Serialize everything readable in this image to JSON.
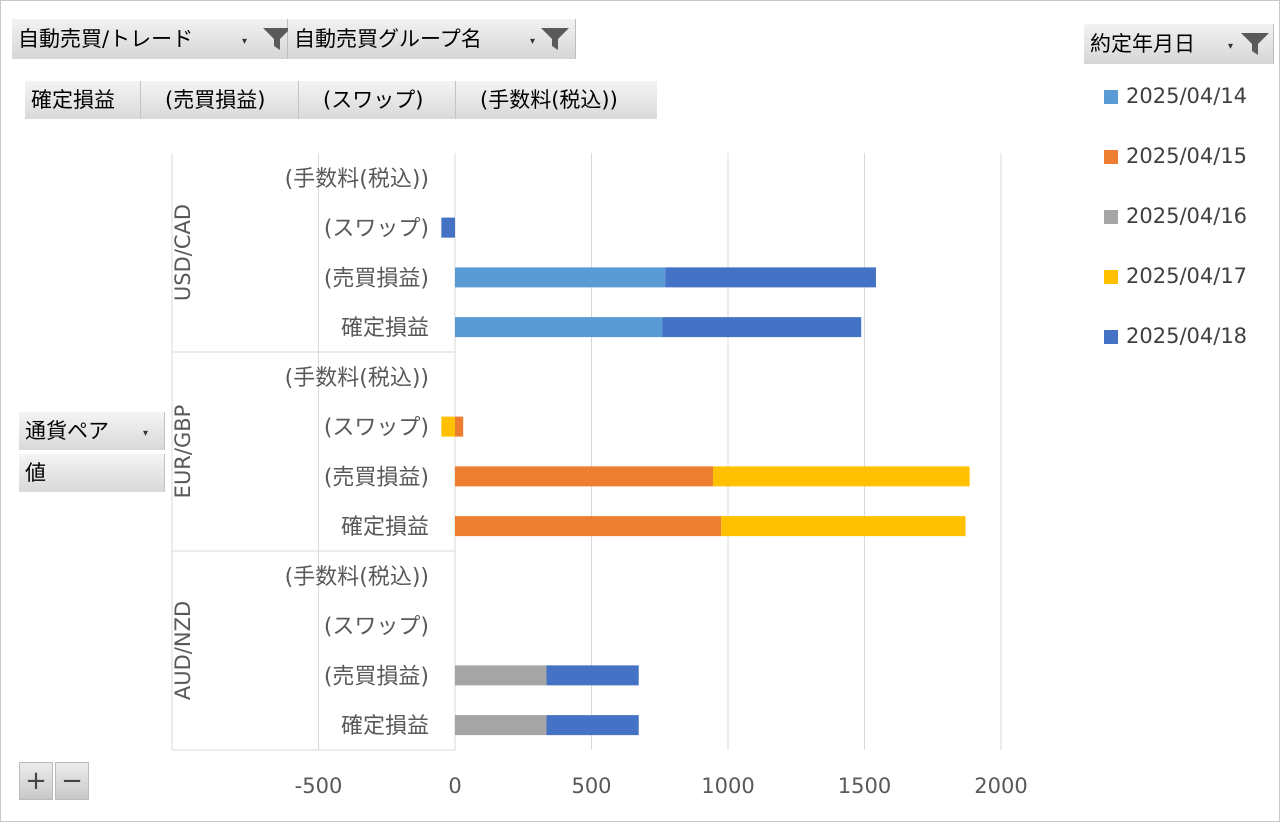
{
  "filters": {
    "report_filter_1": "自動売買/トレード",
    "report_filter_2": "自動売買グループ名",
    "legend_field": "約定年月日"
  },
  "value_fields": [
    "確定損益",
    "(売買損益)",
    "(スワップ)",
    "(手数料(税込))"
  ],
  "row_fields": {
    "currency_pair": "通貨ペア",
    "values": "値"
  },
  "zoom": {
    "plus": "+",
    "minus": "−"
  },
  "chart_data": {
    "type": "bar",
    "orientation": "horizontal",
    "stacked": true,
    "groups": [
      {
        "name": "USD/CAD",
        "categories": [
          "(手数料(税込))",
          "(スワップ)",
          "(売買損益)",
          "確定損益"
        ]
      },
      {
        "name": "EUR/GBP",
        "categories": [
          "(手数料(税込))",
          "(スワップ)",
          "(売買損益)",
          "確定損益"
        ]
      },
      {
        "name": "AUD/NZD",
        "categories": [
          "(手数料(税込))",
          "(スワップ)",
          "(売買損益)",
          "確定損益"
        ]
      }
    ],
    "series": [
      {
        "name": "2025/04/14",
        "color": "#5B9BD5",
        "values": [
          0,
          0,
          770,
          760,
          0,
          0,
          0,
          0,
          0,
          0,
          0,
          0
        ]
      },
      {
        "name": "2025/04/15",
        "color": "#ED7D31",
        "values": [
          0,
          0,
          0,
          0,
          0,
          30,
          945,
          975,
          0,
          0,
          0,
          0
        ]
      },
      {
        "name": "2025/04/16",
        "color": "#A5A5A5",
        "values": [
          0,
          0,
          0,
          0,
          0,
          0,
          0,
          0,
          0,
          0,
          335,
          335
        ]
      },
      {
        "name": "2025/04/17",
        "color": "#FFC000",
        "values": [
          0,
          0,
          0,
          0,
          0,
          -50,
          940,
          895,
          0,
          0,
          0,
          0
        ]
      },
      {
        "name": "2025/04/18",
        "color": "#4472C4",
        "values": [
          0,
          -50,
          772,
          728,
          0,
          0,
          0,
          0,
          0,
          0,
          338,
          338
        ]
      }
    ],
    "xticks": [
      "-500",
      "0",
      "500",
      "1000",
      "1500",
      "2000"
    ],
    "xlim": [
      -500,
      2000
    ],
    "grid": true,
    "legend": "right"
  }
}
